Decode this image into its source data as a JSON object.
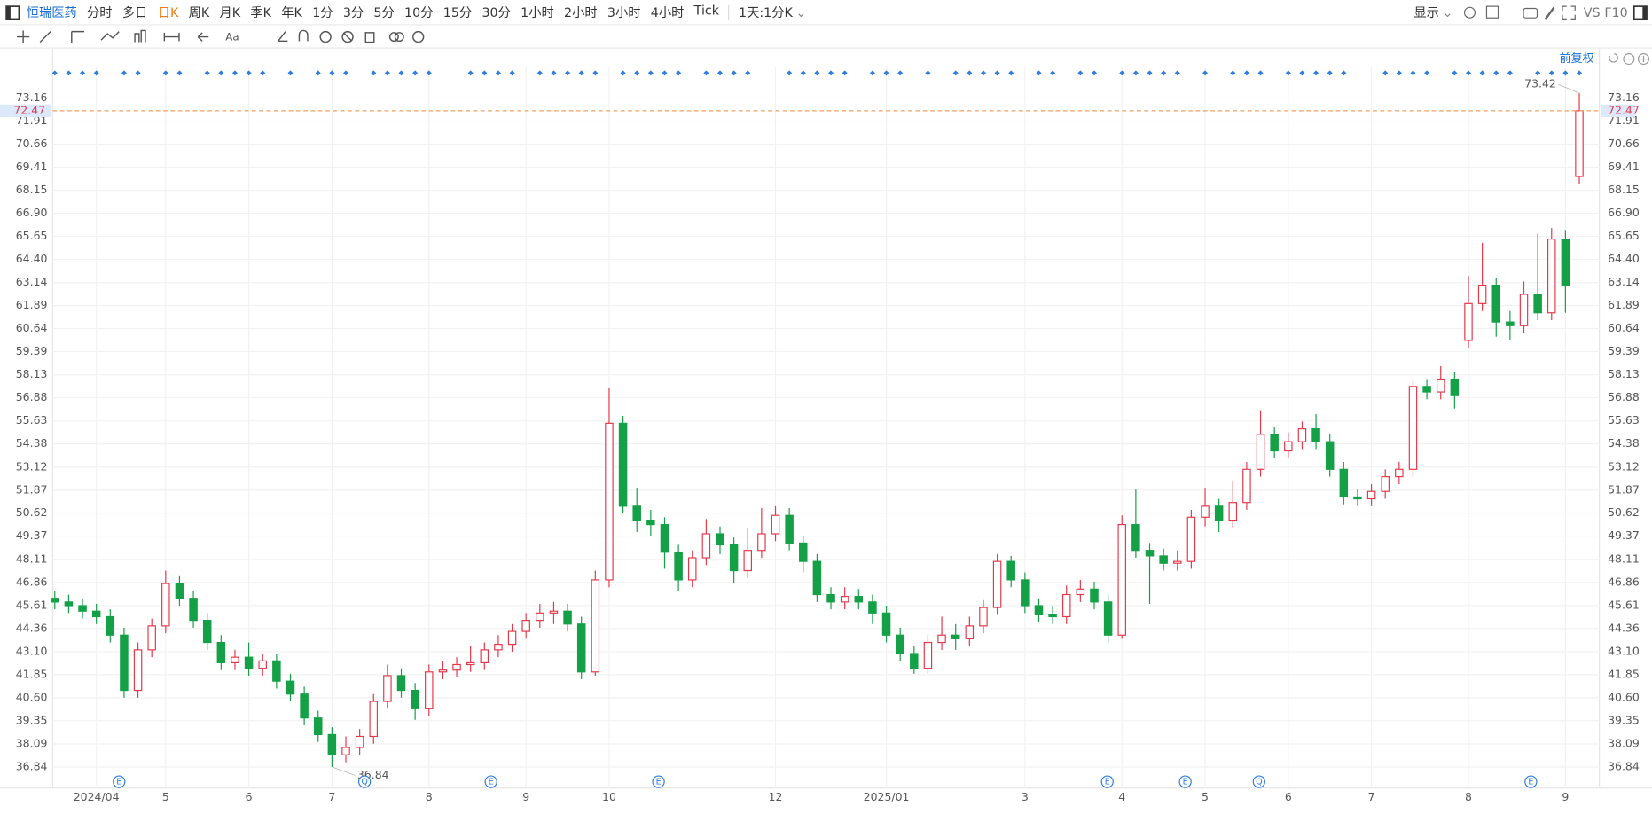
{
  "toolbar": {
    "stock": "恒瑞医药",
    "periods": [
      "分时",
      "多日",
      "日K",
      "周K",
      "月K",
      "季K",
      "年K",
      "1分",
      "3分",
      "5分",
      "10分",
      "15分",
      "30分",
      "1小时",
      "2小时",
      "3小时",
      "4小时",
      "Tick"
    ],
    "range": "1天:1分K",
    "display": "显示",
    "vs": "VS",
    "f10": "F10",
    "adjust": "前复权"
  },
  "chart_data": {
    "type": "candlestick",
    "categories": [
      null,
      null,
      null,
      "2024/04",
      null,
      null,
      null,
      null,
      "5",
      null,
      null,
      null,
      null,
      null,
      "6",
      null,
      null,
      null,
      null,
      null,
      "7",
      null,
      null,
      null,
      null,
      null,
      null,
      "8",
      null,
      null,
      null,
      null,
      null,
      null,
      "9",
      null,
      null,
      null,
      null,
      null,
      "10",
      null,
      null,
      null,
      null,
      null,
      null,
      null,
      null,
      null,
      null,
      null,
      "12",
      null,
      null,
      null,
      null,
      null,
      null,
      null,
      "2025/01",
      null,
      null,
      null,
      null,
      null,
      null,
      null,
      null,
      null,
      "3",
      null,
      null,
      null,
      null,
      null,
      null,
      "4",
      null,
      null,
      null,
      null,
      null,
      "5",
      null,
      null,
      null,
      null,
      null,
      "6",
      null,
      null,
      null,
      null,
      null,
      "7",
      null,
      null,
      null,
      null,
      null,
      null,
      "8",
      null,
      null,
      null,
      null,
      null,
      null,
      "9",
      null
    ],
    "open": [
      46.0,
      45.8,
      45.6,
      45.3,
      45.0,
      44.0,
      41.0,
      43.2,
      44.5,
      46.8,
      46.0,
      44.8,
      43.6,
      42.5,
      42.8,
      42.2,
      42.6,
      41.5,
      40.8,
      39.5,
      38.6,
      37.5,
      37.9,
      38.5,
      40.4,
      41.8,
      41.0,
      40.0,
      42.0,
      42.1,
      42.4,
      42.5,
      43.2,
      43.5,
      44.2,
      44.8,
      45.2,
      45.3,
      44.6,
      42.0,
      47.0,
      55.5,
      51.0,
      50.2,
      50.0,
      48.5,
      47.0,
      48.2,
      49.5,
      48.9,
      47.5,
      48.6,
      49.5,
      50.5,
      49.0,
      48.0,
      46.2,
      45.8,
      46.1,
      45.8,
      45.2,
      44.0,
      43.0,
      42.2,
      43.6,
      44.0,
      43.8,
      44.5,
      45.5,
      48.0,
      47.0,
      45.6,
      45.1,
      45.0,
      46.2,
      46.5,
      45.8,
      44.0,
      50.0,
      48.6,
      48.3,
      47.9,
      48.0,
      50.4,
      51.0,
      50.2,
      51.2,
      53.0,
      54.9,
      54.0,
      54.5,
      55.2,
      54.5,
      53.0,
      51.5,
      51.4,
      51.8,
      52.6,
      53.0,
      57.5,
      57.2,
      57.9,
      60.0,
      62.0,
      63.0,
      61.0,
      60.8,
      62.5,
      61.5,
      65.5,
      68.9
    ],
    "high": [
      46.4,
      46.2,
      46.0,
      45.7,
      45.4,
      44.4,
      43.6,
      44.9,
      47.5,
      47.2,
      46.4,
      45.2,
      44.0,
      43.2,
      43.6,
      43.0,
      43.0,
      41.9,
      41.2,
      39.9,
      39.0,
      38.5,
      38.9,
      40.8,
      42.4,
      42.2,
      41.4,
      42.4,
      42.6,
      42.8,
      43.4,
      43.6,
      44.0,
      44.6,
      45.2,
      45.7,
      45.8,
      45.7,
      45.0,
      47.5,
      57.4,
      55.9,
      52.0,
      50.8,
      50.4,
      48.9,
      48.6,
      50.3,
      49.9,
      49.3,
      49.8,
      50.9,
      51.0,
      50.9,
      49.4,
      48.4,
      46.6,
      46.6,
      46.5,
      46.2,
      45.6,
      44.4,
      43.4,
      44.0,
      45.0,
      44.6,
      45.0,
      45.9,
      48.4,
      48.3,
      47.4,
      46.0,
      45.6,
      46.7,
      47.0,
      46.9,
      46.2,
      50.5,
      51.9,
      49.0,
      48.7,
      48.6,
      50.8,
      52.0,
      51.4,
      52.4,
      53.4,
      56.2,
      55.3,
      55.0,
      55.6,
      56.0,
      54.9,
      53.4,
      51.9,
      52.2,
      53.0,
      53.4,
      57.9,
      57.9,
      58.6,
      58.3,
      63.5,
      65.3,
      63.4,
      61.6,
      63.2,
      65.8,
      66.1,
      66.0,
      73.42
    ],
    "low": [
      45.4,
      45.2,
      44.9,
      44.6,
      43.6,
      40.6,
      40.6,
      42.8,
      44.1,
      45.6,
      44.4,
      43.2,
      42.1,
      42.1,
      41.8,
      41.8,
      41.1,
      40.4,
      39.1,
      38.2,
      36.84,
      37.1,
      37.5,
      38.1,
      40.0,
      40.6,
      39.4,
      39.6,
      41.6,
      41.7,
      42.0,
      42.1,
      42.8,
      43.1,
      43.8,
      44.4,
      44.6,
      44.2,
      41.6,
      41.8,
      46.6,
      50.6,
      49.6,
      49.4,
      47.6,
      46.4,
      46.6,
      47.8,
      48.4,
      46.8,
      47.1,
      48.2,
      49.1,
      48.6,
      47.4,
      45.8,
      45.4,
      45.4,
      45.4,
      44.6,
      43.6,
      42.6,
      41.9,
      41.9,
      43.2,
      43.2,
      43.4,
      44.1,
      45.1,
      46.6,
      45.2,
      44.7,
      44.6,
      44.6,
      45.8,
      45.4,
      43.6,
      43.8,
      48.2,
      45.7,
      47.5,
      47.5,
      47.6,
      49.9,
      49.6,
      49.8,
      50.8,
      52.6,
      53.6,
      53.6,
      54.1,
      54.1,
      52.6,
      51.1,
      51.0,
      51.0,
      51.4,
      52.2,
      52.6,
      56.8,
      56.8,
      56.3,
      59.6,
      61.6,
      60.2,
      60.0,
      60.4,
      61.1,
      61.1,
      61.5,
      68.5
    ],
    "close": [
      45.8,
      45.6,
      45.3,
      45.0,
      44.0,
      41.0,
      43.2,
      44.5,
      46.8,
      46.0,
      44.8,
      43.6,
      42.5,
      42.8,
      42.2,
      42.6,
      41.5,
      40.8,
      39.5,
      38.6,
      37.5,
      37.9,
      38.5,
      40.4,
      41.8,
      41.0,
      40.0,
      42.0,
      42.1,
      42.4,
      42.5,
      43.2,
      43.5,
      44.2,
      44.8,
      45.2,
      45.3,
      44.6,
      42.0,
      47.0,
      55.5,
      51.0,
      50.2,
      50.0,
      48.5,
      47.0,
      48.2,
      49.5,
      48.9,
      47.5,
      48.6,
      49.5,
      50.5,
      49.0,
      48.0,
      46.2,
      45.8,
      46.1,
      45.8,
      45.2,
      44.0,
      43.0,
      42.2,
      43.6,
      44.0,
      43.8,
      44.5,
      45.5,
      48.0,
      47.0,
      45.6,
      45.1,
      45.0,
      46.2,
      46.5,
      45.8,
      44.0,
      50.0,
      48.6,
      48.3,
      47.9,
      48.0,
      50.4,
      51.0,
      50.2,
      51.2,
      53.0,
      54.9,
      54.0,
      54.5,
      55.2,
      54.5,
      53.0,
      51.5,
      51.4,
      51.8,
      52.6,
      53.0,
      57.5,
      57.2,
      57.9,
      57.0,
      62.0,
      63.0,
      61.0,
      60.8,
      62.5,
      61.5,
      65.5,
      63.0,
      72.47
    ],
    "up_color": "#e5394b",
    "down_color": "#14a046",
    "ylim": [
      36.44,
      74.82
    ],
    "yticks": [
      36.84,
      38.09,
      39.35,
      {
        "value": 40.6,
        "label": "40.60"
      },
      41.85,
      {
        "value": 43.1,
        "label": "43.10"
      },
      44.36,
      45.61,
      46.86,
      48.11,
      49.37,
      50.62,
      51.87,
      53.12,
      54.38,
      55.63,
      56.88,
      58.13,
      59.39,
      60.64,
      61.89,
      63.14,
      {
        "value": 64.4,
        "label": "64.40"
      },
      65.65,
      {
        "value": 66.9,
        "label": "66.90"
      },
      68.15,
      69.41,
      70.66,
      71.91,
      73.16
    ],
    "grid": true,
    "events": [
      "E",
      "Q",
      "E",
      "E",
      "E",
      "E",
      "Q",
      "E"
    ]
  }
}
